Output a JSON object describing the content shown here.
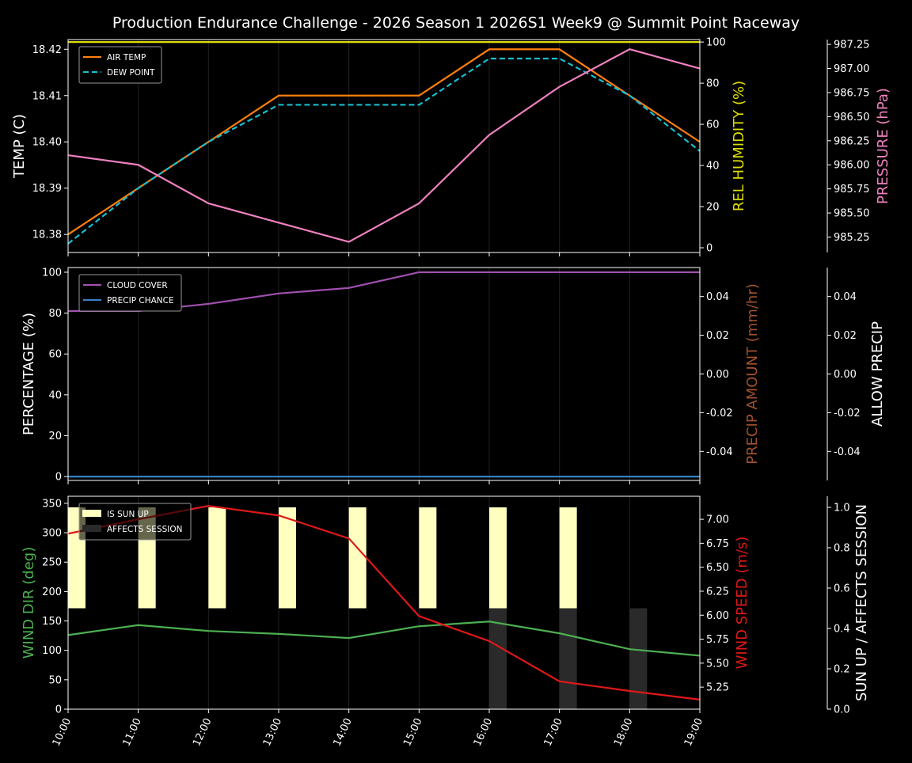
{
  "title": "Production Endurance Challenge - 2026 Season 1 2026S1 Week9 @ Summit Point Raceway",
  "chart_data": [
    {
      "type": "line",
      "panel": "weather",
      "x": [
        "10:00",
        "11:00",
        "12:00",
        "13:00",
        "14:00",
        "15:00",
        "16:00",
        "17:00",
        "18:00",
        "19:00"
      ],
      "ylabel": "TEMP (C)",
      "ylim": [
        18.3761,
        18.4221
      ],
      "yticks": [
        18.38,
        18.39,
        18.4,
        18.41,
        18.42
      ],
      "y2label": "REL HUMIDITY (%)",
      "y2lim": [
        -2.3,
        101.2
      ],
      "y2ticks": [
        0,
        20,
        40,
        60,
        80,
        100
      ],
      "y3label": "PRESSURE (hPa)",
      "y3lim": [
        985.09,
        987.3
      ],
      "y3ticks": [
        985.25,
        985.5,
        985.75,
        986.0,
        986.25,
        986.5,
        986.75,
        987.0,
        987.25
      ],
      "legend": "top-left",
      "series": [
        {
          "name": "AIR TEMP",
          "axis": "y",
          "color": "#ff7f0e",
          "style": "solid",
          "values": [
            18.38,
            18.39,
            18.4,
            18.41,
            18.41,
            18.41,
            18.42,
            18.42,
            18.41,
            18.4
          ]
        },
        {
          "name": "DEW POINT",
          "axis": "y",
          "color": "#17becf",
          "style": "dashed",
          "values": [
            18.378,
            18.39,
            18.4,
            18.408,
            18.408,
            18.408,
            18.418,
            18.418,
            18.41,
            18.398
          ]
        },
        {
          "axis": "y2",
          "color": "#dddd00",
          "style": "solid",
          "values": [
            100,
            100,
            100,
            100,
            100,
            100,
            100,
            100,
            100,
            100
          ]
        },
        {
          "axis": "y3",
          "color": "#f080c0",
          "style": "solid",
          "values": [
            986.1,
            986.0,
            985.6,
            985.4,
            985.2,
            985.6,
            986.31,
            986.81,
            987.2,
            987.0
          ]
        }
      ]
    },
    {
      "type": "line",
      "panel": "precip",
      "ylabel": "PERCENTAGE (%)",
      "ylim": [
        -1.9,
        102.3
      ],
      "yticks": [
        0,
        20,
        40,
        60,
        80,
        100
      ],
      "y2label": "PRECIP AMOUNT (mm/hr)",
      "y2lim": [
        -0.055,
        0.055
      ],
      "y2ticks": [
        "-0.04",
        "-0.02",
        "0.00",
        "0.02",
        "0.04"
      ],
      "y3label": "ALLOW PRECIP",
      "y3lim": [
        -0.055,
        0.055
      ],
      "y3ticks": [
        "-0.04",
        "-0.02",
        "0.00",
        "0.02",
        "0.04"
      ],
      "legend": "top-left",
      "series": [
        {
          "name": "CLOUD COVER",
          "axis": "y",
          "color": "#a050b0",
          "style": "solid",
          "values": [
            81,
            81,
            84.5,
            89.6,
            92.3,
            100,
            100,
            100,
            100,
            100
          ]
        },
        {
          "name": "PRECIP CHANCE",
          "axis": "y",
          "color": "#3a80c0",
          "style": "solid",
          "values": [
            0,
            0,
            0,
            0,
            0,
            0,
            0,
            0,
            0,
            0
          ]
        }
      ]
    },
    {
      "type": "line+bar",
      "panel": "wind",
      "ylabel": "WIND DIR (deg)",
      "ylim": [
        0,
        362
      ],
      "yticks": [
        0,
        50,
        100,
        150,
        200,
        250,
        300,
        350
      ],
      "y2label": "WIND SPEED (m/s)",
      "y2lim": [
        5.02,
        7.24
      ],
      "y2ticks": [
        "5.25",
        "5.50",
        "5.75",
        "6.00",
        "6.25",
        "6.50",
        "6.75",
        "7.00"
      ],
      "y3label": "SUN UP / AFFECTS SESSION",
      "y3lim": [
        0,
        1.055
      ],
      "y3ticks": [
        "0.0",
        "0.2",
        "0.4",
        "0.6",
        "0.8",
        "1.0"
      ],
      "legend": "top-left",
      "bars": [
        {
          "name": "IS SUN UP",
          "color": "#ffffc0",
          "bottom": 0.5,
          "values": [
            0.5,
            0.5,
            0.5,
            0.5,
            0.5,
            0.5,
            0.5,
            0.5,
            0,
            0
          ]
        },
        {
          "name": "AFFECTS SESSION",
          "color": "#2a2a2a",
          "bottom": 0,
          "values": [
            0,
            0,
            0,
            0,
            0,
            0,
            0.5,
            0.5,
            0.5,
            0
          ]
        }
      ],
      "series": [
        {
          "axis": "y",
          "color": "#4caf50",
          "style": "solid",
          "values": [
            126,
            143,
            133,
            128,
            121,
            141,
            149,
            129,
            102,
            91
          ]
        },
        {
          "axis": "y2",
          "color": "#e01818",
          "style": "solid",
          "values": [
            6.85,
            7.0,
            7.14,
            7.04,
            6.8,
            5.99,
            5.73,
            5.31,
            5.21,
            5.12
          ]
        }
      ]
    }
  ],
  "colors": {
    "y2_weather": "#dddd00",
    "y3_weather": "#f080c0",
    "y2_precip": "#a0522d",
    "y_wind": "#4caf50",
    "y2_wind": "#e01818"
  }
}
